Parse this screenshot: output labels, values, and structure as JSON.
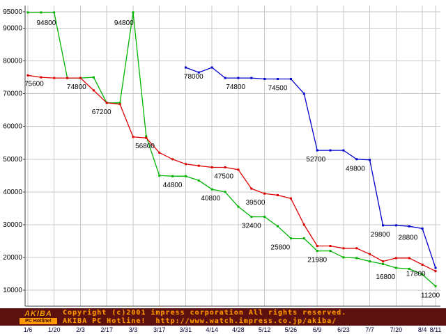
{
  "chart_data": {
    "type": "line",
    "title": "",
    "xlabel": "",
    "ylabel": "",
    "grid": true,
    "legend": "none",
    "ylim": [
      5000,
      95000
    ],
    "y_ticks": [
      95000,
      90000,
      80000,
      70000,
      60000,
      50000,
      40000,
      30000,
      20000,
      10000
    ],
    "y_tick_labels": [
      "95000",
      "90000",
      "80000",
      "70000",
      "60000",
      "50000",
      "40000",
      "30000",
      "20000",
      "10000"
    ],
    "x_ticks": [
      {
        "week": 0,
        "label": "1/6"
      },
      {
        "week": 2,
        "label": "1/20"
      },
      {
        "week": 4,
        "label": "2/3"
      },
      {
        "week": 6,
        "label": "2/17"
      },
      {
        "week": 8,
        "label": "3/3"
      },
      {
        "week": 10,
        "label": "3/17"
      },
      {
        "week": 12,
        "label": "3/31"
      },
      {
        "week": 14,
        "label": "4/14"
      },
      {
        "week": 16,
        "label": "4/28"
      },
      {
        "week": 18,
        "label": "5/12"
      },
      {
        "week": 20,
        "label": "5/26"
      },
      {
        "week": 22,
        "label": "6/9"
      },
      {
        "week": 24,
        "label": "6/23"
      },
      {
        "week": 26,
        "label": "7/7"
      },
      {
        "week": 28,
        "label": "7/20"
      },
      {
        "week": 30,
        "label": "8/4"
      },
      {
        "week": 31,
        "label": "8/11"
      }
    ],
    "weeks_total": 31,
    "colors": {
      "grid": "#c8c8c8",
      "axis": "#404040",
      "green": "#00b400",
      "red": "#dd0000",
      "blue": "#0000cc"
    },
    "series": [
      {
        "name": "green-series",
        "color": "#00b400",
        "values": [
          94800,
          94800,
          94800,
          74800,
          74800,
          75000,
          67200,
          67200,
          94800,
          57000,
          45000,
          44800,
          44800,
          43500,
          40800,
          40000,
          35500,
          32400,
          32400,
          29500,
          25800,
          25800,
          21980,
          21980,
          20000,
          19800,
          18800,
          18000,
          16800,
          16500,
          14800,
          11200
        ]
      },
      {
        "name": "red-series",
        "color": "#dd0000",
        "values": [
          75600,
          75000,
          74800,
          74800,
          74800,
          71000,
          67200,
          66800,
          56800,
          56500,
          52000,
          50000,
          48500,
          48000,
          47500,
          47500,
          46800,
          41000,
          39500,
          39000,
          38000,
          30000,
          23500,
          23500,
          22800,
          22800,
          21000,
          18800,
          19800,
          19800,
          17800,
          15800
        ]
      },
      {
        "name": "blue-series",
        "color": "#0000cc",
        "values": [
          null,
          null,
          null,
          null,
          null,
          null,
          null,
          null,
          null,
          null,
          null,
          null,
          78000,
          76500,
          78000,
          74800,
          74800,
          74800,
          74500,
          74500,
          74500,
          70000,
          52700,
          52700,
          52700,
          50000,
          49800,
          29800,
          29800,
          29500,
          28800,
          16800
        ]
      }
    ],
    "annotations": [
      {
        "text": "75600",
        "week": 0,
        "value": 75600,
        "dy": 15,
        "anchor": "start"
      },
      {
        "text": "94800",
        "week": 1.4,
        "value": 94800,
        "dy": 18,
        "anchor": "middle"
      },
      {
        "text": "74800",
        "week": 3.7,
        "value": 74800,
        "dy": 16,
        "anchor": "middle"
      },
      {
        "text": "67200",
        "week": 5.6,
        "value": 67200,
        "dy": 16,
        "anchor": "middle"
      },
      {
        "text": "94800",
        "week": 7.3,
        "value": 94800,
        "dy": 18,
        "anchor": "middle"
      },
      {
        "text": "56800",
        "week": 8.9,
        "value": 56800,
        "dy": 16,
        "anchor": "middle"
      },
      {
        "text": "44800",
        "week": 11.0,
        "value": 44800,
        "dy": 16,
        "anchor": "middle"
      },
      {
        "text": "78000",
        "week": 12.6,
        "value": 78000,
        "dy": 16,
        "anchor": "middle"
      },
      {
        "text": "74800",
        "week": 15.8,
        "value": 74800,
        "dy": 16,
        "anchor": "middle"
      },
      {
        "text": "74500",
        "week": 19.0,
        "value": 74500,
        "dy": 16,
        "anchor": "middle"
      },
      {
        "text": "47500",
        "week": 14.9,
        "value": 47500,
        "dy": 16,
        "anchor": "middle"
      },
      {
        "text": "40800",
        "week": 13.9,
        "value": 40800,
        "dy": 16,
        "anchor": "middle"
      },
      {
        "text": "39500",
        "week": 17.3,
        "value": 39500,
        "dy": 16,
        "anchor": "middle"
      },
      {
        "text": "32400",
        "week": 17.0,
        "value": 32400,
        "dy": 16,
        "anchor": "middle"
      },
      {
        "text": "25800",
        "week": 19.2,
        "value": 25800,
        "dy": 16,
        "anchor": "middle"
      },
      {
        "text": "52700",
        "week": 21.9,
        "value": 52700,
        "dy": 16,
        "anchor": "middle"
      },
      {
        "text": "49800",
        "week": 24.9,
        "value": 49800,
        "dy": 16,
        "anchor": "middle"
      },
      {
        "text": "21980",
        "week": 22.0,
        "value": 21980,
        "dy": 16,
        "anchor": "middle"
      },
      {
        "text": "29800",
        "week": 26.8,
        "value": 29800,
        "dy": 16,
        "anchor": "middle"
      },
      {
        "text": "28800",
        "week": 28.9,
        "value": 28800,
        "dy": 16,
        "anchor": "middle"
      },
      {
        "text": "16800",
        "week": 27.2,
        "value": 16800,
        "dy": 16,
        "anchor": "middle"
      },
      {
        "text": "17800",
        "week": 29.5,
        "value": 17800,
        "dy": 16,
        "anchor": "middle"
      },
      {
        "text": "11200",
        "week": 30.6,
        "value": 11200,
        "dy": 16,
        "anchor": "middle"
      }
    ]
  },
  "footer": {
    "logo_top": "AKIBA",
    "logo_bottom": "PC Hotline!",
    "copyright_line": "Copyright (c)2001 impress corporation All rights reserved.",
    "site_line": "AKIBA PC Hotline!  http://www.watch.impress.co.jp/akiba/",
    "bg_color": "#5c1010",
    "text_color": "#ff9900"
  }
}
